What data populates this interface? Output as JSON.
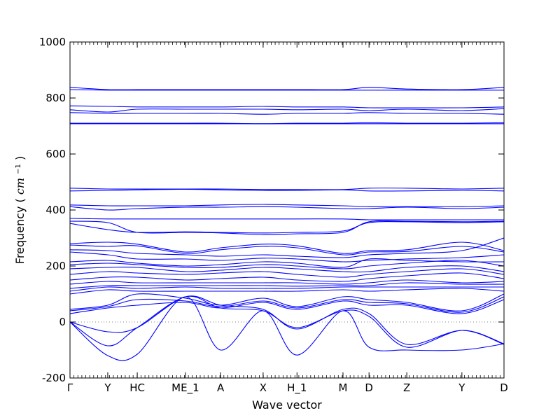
{
  "chart_data": {
    "type": "line",
    "title": "",
    "xlabel": "Wave vector",
    "ylabel": "Frequency",
    "ylabel_unit_base": "cm",
    "ylabel_unit_exp": "−1",
    "ylim": [
      -200,
      1000
    ],
    "yticks": [
      -200,
      0,
      200,
      400,
      600,
      800,
      1000
    ],
    "zero_line": "dotted",
    "grid": false,
    "legend": "none",
    "colors": {
      "bands": "#0000ff",
      "axes": "#000000",
      "zero_line": "#7f7f7f"
    },
    "xrange": [
      0,
      1
    ],
    "high_symmetry_points": [
      {
        "label": "Γ",
        "x": 0.0
      },
      {
        "label": "Y",
        "x": 0.087
      },
      {
        "label": "HC",
        "x": 0.155
      },
      {
        "label": "ME_1",
        "x": 0.266
      },
      {
        "label": "A",
        "x": 0.347
      },
      {
        "label": "X",
        "x": 0.445
      },
      {
        "label": "H_1",
        "x": 0.523
      },
      {
        "label": "M",
        "x": 0.629
      },
      {
        "label": "D",
        "x": 0.689
      },
      {
        "label": "Z",
        "x": 0.776
      },
      {
        "label": "Y",
        "x": 0.903
      },
      {
        "label": "D",
        "x": 1.0
      }
    ],
    "series": [
      {
        "x": [
          0,
          0.087,
          0.155,
          0.266,
          0.347,
          0.445,
          0.523,
          0.629,
          0.689,
          0.776,
          0.903,
          1
        ],
        "values": [
          838,
          830,
          830,
          830,
          830,
          830,
          830,
          830,
          838,
          832,
          830,
          838
        ]
      },
      {
        "x": [
          0,
          0.087,
          0.155,
          0.266,
          0.347,
          0.445,
          0.523,
          0.629,
          0.689,
          0.776,
          0.903,
          1
        ],
        "values": [
          830,
          828,
          828,
          828,
          828,
          828,
          828,
          828,
          828,
          828,
          828,
          828
        ]
      },
      {
        "x": [
          0,
          0.087,
          0.155,
          0.266,
          0.347,
          0.445,
          0.523,
          0.629,
          0.689,
          0.776,
          0.903,
          1
        ],
        "values": [
          772,
          770,
          768,
          768,
          768,
          770,
          768,
          768,
          765,
          765,
          765,
          768
        ]
      },
      {
        "x": [
          0,
          0.087,
          0.155,
          0.266,
          0.347,
          0.445,
          0.523,
          0.629,
          0.689,
          0.776,
          0.903,
          1
        ],
        "values": [
          758,
          750,
          760,
          760,
          760,
          760,
          758,
          760,
          755,
          760,
          755,
          762
        ]
      },
      {
        "x": [
          0,
          0.087,
          0.155,
          0.266,
          0.347,
          0.445,
          0.523,
          0.629,
          0.689,
          0.776,
          0.903,
          1
        ],
        "values": [
          748,
          745,
          745,
          745,
          745,
          742,
          745,
          745,
          748,
          745,
          745,
          742
        ]
      },
      {
        "x": [
          0,
          0.087,
          0.155,
          0.266,
          0.347,
          0.445,
          0.523,
          0.629,
          0.689,
          0.776,
          0.903,
          1
        ],
        "values": [
          710,
          710,
          710,
          710,
          710,
          708,
          710,
          710,
          712,
          710,
          710,
          712
        ]
      },
      {
        "x": [
          0,
          0.087,
          0.155,
          0.266,
          0.347,
          0.445,
          0.523,
          0.629,
          0.689,
          0.776,
          0.903,
          1
        ],
        "values": [
          708,
          708,
          708,
          708,
          708,
          708,
          708,
          708,
          708,
          708,
          708,
          708
        ]
      },
      {
        "x": [
          0,
          0.087,
          0.155,
          0.266,
          0.347,
          0.445,
          0.523,
          0.629,
          0.689,
          0.776,
          0.903,
          1
        ],
        "values": [
          478,
          475,
          475,
          475,
          475,
          473,
          473,
          473,
          478,
          478,
          475,
          478
        ]
      },
      {
        "x": [
          0,
          0.087,
          0.155,
          0.266,
          0.347,
          0.445,
          0.523,
          0.629,
          0.689,
          0.776,
          0.903,
          1
        ],
        "values": [
          468,
          470,
          472,
          474,
          472,
          470,
          470,
          472,
          468,
          468,
          470,
          468
        ]
      },
      {
        "x": [
          0,
          0.087,
          0.155,
          0.266,
          0.347,
          0.445,
          0.523,
          0.629,
          0.689,
          0.776,
          0.903,
          1
        ],
        "values": [
          418,
          415,
          415,
          415,
          418,
          420,
          418,
          415,
          412,
          412,
          412,
          415
        ]
      },
      {
        "x": [
          0,
          0.087,
          0.155,
          0.266,
          0.347,
          0.445,
          0.523,
          0.629,
          0.689,
          0.776,
          0.903,
          1
        ],
        "values": [
          412,
          400,
          405,
          410,
          410,
          412,
          410,
          405,
          405,
          410,
          405,
          410
        ]
      },
      {
        "x": [
          0,
          0.087,
          0.155,
          0.266,
          0.347,
          0.445,
          0.523,
          0.629,
          0.689,
          0.776,
          0.903,
          1
        ],
        "values": [
          370,
          368,
          368,
          368,
          368,
          368,
          368,
          368,
          365,
          365,
          365,
          365
        ]
      },
      {
        "x": [
          0,
          0.087,
          0.155,
          0.266,
          0.347,
          0.445,
          0.523,
          0.629,
          0.689,
          0.776,
          0.903,
          1
        ],
        "values": [
          360,
          355,
          320,
          320,
          318,
          312,
          315,
          320,
          358,
          360,
          358,
          360
        ]
      },
      {
        "x": [
          0,
          0.087,
          0.155,
          0.266,
          0.347,
          0.445,
          0.523,
          0.629,
          0.689,
          0.776,
          0.903,
          1
        ],
        "values": [
          352,
          330,
          320,
          322,
          320,
          318,
          320,
          325,
          355,
          358,
          355,
          358
        ]
      },
      {
        "x": [
          0,
          0.087,
          0.155,
          0.266,
          0.347,
          0.445,
          0.523,
          0.629,
          0.689,
          0.776,
          0.903,
          1
        ],
        "values": [
          280,
          285,
          278,
          250,
          265,
          278,
          272,
          245,
          255,
          258,
          285,
          255
        ]
      },
      {
        "x": [
          0,
          0.087,
          0.155,
          0.266,
          0.347,
          0.445,
          0.523,
          0.629,
          0.689,
          0.776,
          0.903,
          1
        ],
        "values": [
          275,
          270,
          272,
          245,
          258,
          270,
          265,
          240,
          250,
          252,
          270,
          250
        ]
      },
      {
        "x": [
          0,
          0.087,
          0.155,
          0.266,
          0.347,
          0.445,
          0.523,
          0.629,
          0.689,
          0.776,
          0.903,
          1
        ],
        "values": [
          258,
          255,
          245,
          240,
          235,
          240,
          235,
          230,
          240,
          245,
          255,
          300
        ]
      },
      {
        "x": [
          0,
          0.087,
          0.155,
          0.266,
          0.347,
          0.445,
          0.523,
          0.629,
          0.689,
          0.776,
          0.903,
          1
        ],
        "values": [
          250,
          240,
          225,
          225,
          220,
          228,
          225,
          215,
          220,
          225,
          230,
          240
        ]
      },
      {
        "x": [
          0,
          0.087,
          0.155,
          0.266,
          0.347,
          0.445,
          0.523,
          0.629,
          0.689,
          0.776,
          0.903,
          1
        ],
        "values": [
          215,
          220,
          210,
          200,
          205,
          215,
          210,
          195,
          225,
          220,
          215,
          215
        ]
      },
      {
        "x": [
          0,
          0.087,
          0.155,
          0.266,
          0.347,
          0.445,
          0.523,
          0.629,
          0.689,
          0.776,
          0.903,
          1
        ],
        "values": [
          205,
          210,
          205,
          195,
          195,
          205,
          200,
          190,
          200,
          210,
          220,
          200
        ]
      },
      {
        "x": [
          0,
          0.087,
          0.155,
          0.266,
          0.347,
          0.445,
          0.523,
          0.629,
          0.689,
          0.776,
          0.903,
          1
        ],
        "values": [
          190,
          195,
          195,
          180,
          185,
          195,
          190,
          180,
          180,
          195,
          200,
          180
        ]
      },
      {
        "x": [
          0,
          0.087,
          0.155,
          0.266,
          0.347,
          0.445,
          0.523,
          0.629,
          0.689,
          0.776,
          0.903,
          1
        ],
        "values": [
          170,
          180,
          175,
          170,
          175,
          180,
          170,
          160,
          170,
          180,
          190,
          170
        ]
      },
      {
        "x": [
          0,
          0.087,
          0.155,
          0.266,
          0.347,
          0.445,
          0.523,
          0.629,
          0.689,
          0.776,
          0.903,
          1
        ],
        "values": [
          150,
          160,
          160,
          150,
          155,
          160,
          150,
          145,
          155,
          165,
          175,
          155
        ]
      },
      {
        "x": [
          0,
          0.087,
          0.155,
          0.266,
          0.347,
          0.445,
          0.523,
          0.629,
          0.689,
          0.776,
          0.903,
          1
        ],
        "values": [
          135,
          145,
          140,
          140,
          140,
          140,
          140,
          135,
          140,
          150,
          140,
          145
        ]
      },
      {
        "x": [
          0,
          0.087,
          0.155,
          0.266,
          0.347,
          0.445,
          0.523,
          0.629,
          0.689,
          0.776,
          0.903,
          1
        ],
        "values": [
          120,
          130,
          130,
          130,
          130,
          130,
          128,
          130,
          130,
          140,
          135,
          135
        ]
      },
      {
        "x": [
          0,
          0.087,
          0.155,
          0.266,
          0.347,
          0.445,
          0.523,
          0.629,
          0.689,
          0.776,
          0.903,
          1
        ],
        "values": [
          110,
          125,
          120,
          125,
          120,
          120,
          120,
          125,
          125,
          125,
          125,
          125
        ]
      },
      {
        "x": [
          0,
          0.087,
          0.155,
          0.266,
          0.347,
          0.445,
          0.523,
          0.629,
          0.689,
          0.776,
          0.903,
          1
        ],
        "values": [
          100,
          115,
          110,
          110,
          110,
          110,
          110,
          115,
          110,
          115,
          120,
          110
        ]
      },
      {
        "x": [
          0,
          0.087,
          0.155,
          0.266,
          0.347,
          0.445,
          0.523,
          0.629,
          0.689,
          0.776,
          0.903,
          1
        ],
        "values": [
          45,
          60,
          100,
          85,
          60,
          85,
          55,
          90,
          80,
          70,
          40,
          100
        ]
      },
      {
        "x": [
          0,
          0.087,
          0.155,
          0.266,
          0.347,
          0.445,
          0.523,
          0.629,
          0.689,
          0.776,
          0.903,
          1
        ],
        "values": [
          40,
          55,
          80,
          75,
          55,
          75,
          50,
          80,
          70,
          65,
          35,
          90
        ]
      },
      {
        "x": [
          0,
          0.087,
          0.155,
          0.266,
          0.347,
          0.445,
          0.523,
          0.629,
          0.689,
          0.776,
          0.903,
          1
        ],
        "values": [
          30,
          50,
          60,
          70,
          50,
          70,
          45,
          75,
          60,
          60,
          30,
          80
        ]
      },
      {
        "x": [
          0,
          0.087,
          0.155,
          0.266,
          0.347,
          0.445,
          0.523,
          0.629,
          0.689,
          0.776,
          0.903,
          1
        ],
        "values": [
          0,
          -35,
          -20,
          90,
          60,
          45,
          -25,
          45,
          30,
          -80,
          -30,
          -80
        ]
      },
      {
        "x": [
          0,
          0.087,
          0.155,
          0.266,
          0.347,
          0.445,
          0.523,
          0.629,
          0.689,
          0.776,
          0.903,
          1
        ],
        "values": [
          0,
          -85,
          -20,
          90,
          50,
          40,
          -20,
          40,
          20,
          -90,
          -30,
          -78
        ]
      },
      {
        "x": [
          0,
          0.087,
          0.155,
          0.266,
          0.347,
          0.445,
          0.523,
          0.629,
          0.689,
          0.776,
          0.903,
          1
        ],
        "values": [
          0,
          -120,
          -115,
          90,
          -100,
          40,
          -118,
          40,
          -90,
          -100,
          -100,
          -78
        ]
      }
    ]
  }
}
